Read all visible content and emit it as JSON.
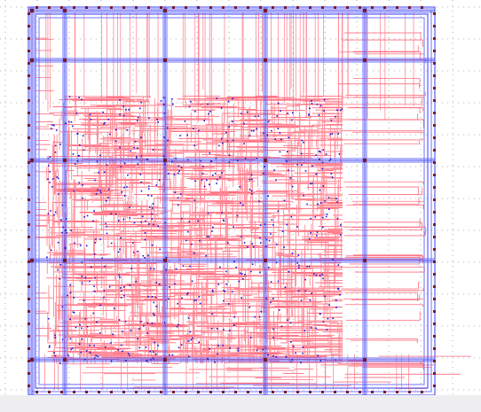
{
  "viewer": {
    "content": "chip-layout-routing-view",
    "grid": true
  },
  "colors": {
    "background": "#ffffff",
    "dot_grid": "#9a9a9a",
    "metal_horizontal": "#ff6e7f",
    "metal_vertical": "#ff8a96",
    "power_strap": "#3a3df0",
    "power_strap_light": "#6f72ff",
    "via": "#1414d8",
    "pad": "#7a1a2a",
    "bottom_bar": "#eeeef0"
  },
  "layout": {
    "power_grid_rows": 5,
    "power_grid_cols": 5,
    "dense_region": "center-left"
  }
}
